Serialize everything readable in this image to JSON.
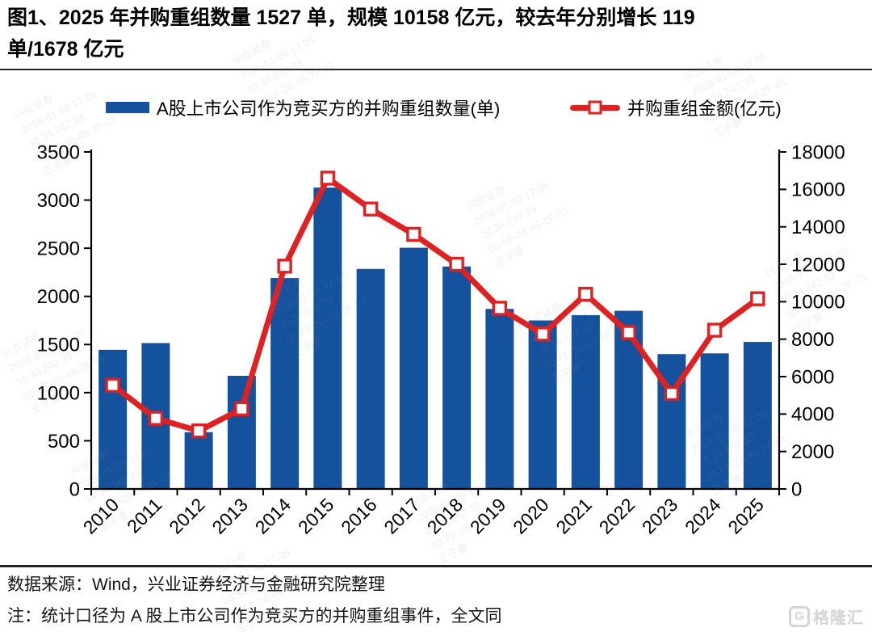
{
  "title": {
    "line1": "图1、2025 年并购重组数量 1527 单，规模 10158 亿元，较去年分别增长 119",
    "line2": "单/1678 亿元"
  },
  "chart_data": {
    "type": "bar",
    "title": "图1、2025 年并购重组数量 1527 单，规模 10158 亿元，较去年分别增长 119 单/1678 亿元",
    "categories": [
      "2010",
      "2011",
      "2012",
      "2013",
      "2014",
      "2015",
      "2016",
      "2017",
      "2018",
      "2019",
      "2020",
      "2021",
      "2022",
      "2023",
      "2024",
      "2025"
    ],
    "series": [
      {
        "name": "A股上市公司作为竞买方的并购重组数量(单)",
        "type": "bar",
        "axis": "left",
        "color": "#15529E",
        "values": [
          1445,
          1515,
          590,
          1175,
          2190,
          3130,
          2285,
          2505,
          2310,
          1870,
          1750,
          1805,
          1850,
          1400,
          1408,
          1527
        ]
      },
      {
        "name": "并购重组金额(亿元)",
        "type": "line",
        "axis": "right",
        "color": "#DF2121",
        "marker": "open-square",
        "values": [
          5540,
          3770,
          3100,
          4280,
          11900,
          16600,
          14950,
          13600,
          12000,
          9650,
          8275,
          10400,
          8350,
          5100,
          8480,
          10158
        ]
      }
    ],
    "left_axis": {
      "min": 0,
      "max": 3500,
      "step": 500,
      "ticks": [
        0,
        500,
        1000,
        1500,
        2000,
        2500,
        3000,
        3500
      ]
    },
    "right_axis": {
      "min": 0,
      "max": 18000,
      "step": 2000,
      "ticks": [
        0,
        2000,
        4000,
        6000,
        8000,
        10000,
        12000,
        14000,
        16000,
        18000
      ]
    },
    "grid": false,
    "legend_position": "top"
  },
  "footer": {
    "source": "数据来源：Wind，兴业证券经济与金融研究院整理",
    "note": "注：统计口径为 A 股上市公司作为竞买方的并购重组事件，全文同",
    "logo_text": "格隆汇",
    "logo_icon_letter": "G"
  },
  "watermark": {
    "lines": [
      "兴业证券",
      "2026-01-08 17:05",
      "10.34.242.33",
      "00-FF-26-46-2F-01",
      "王子謇"
    ]
  }
}
